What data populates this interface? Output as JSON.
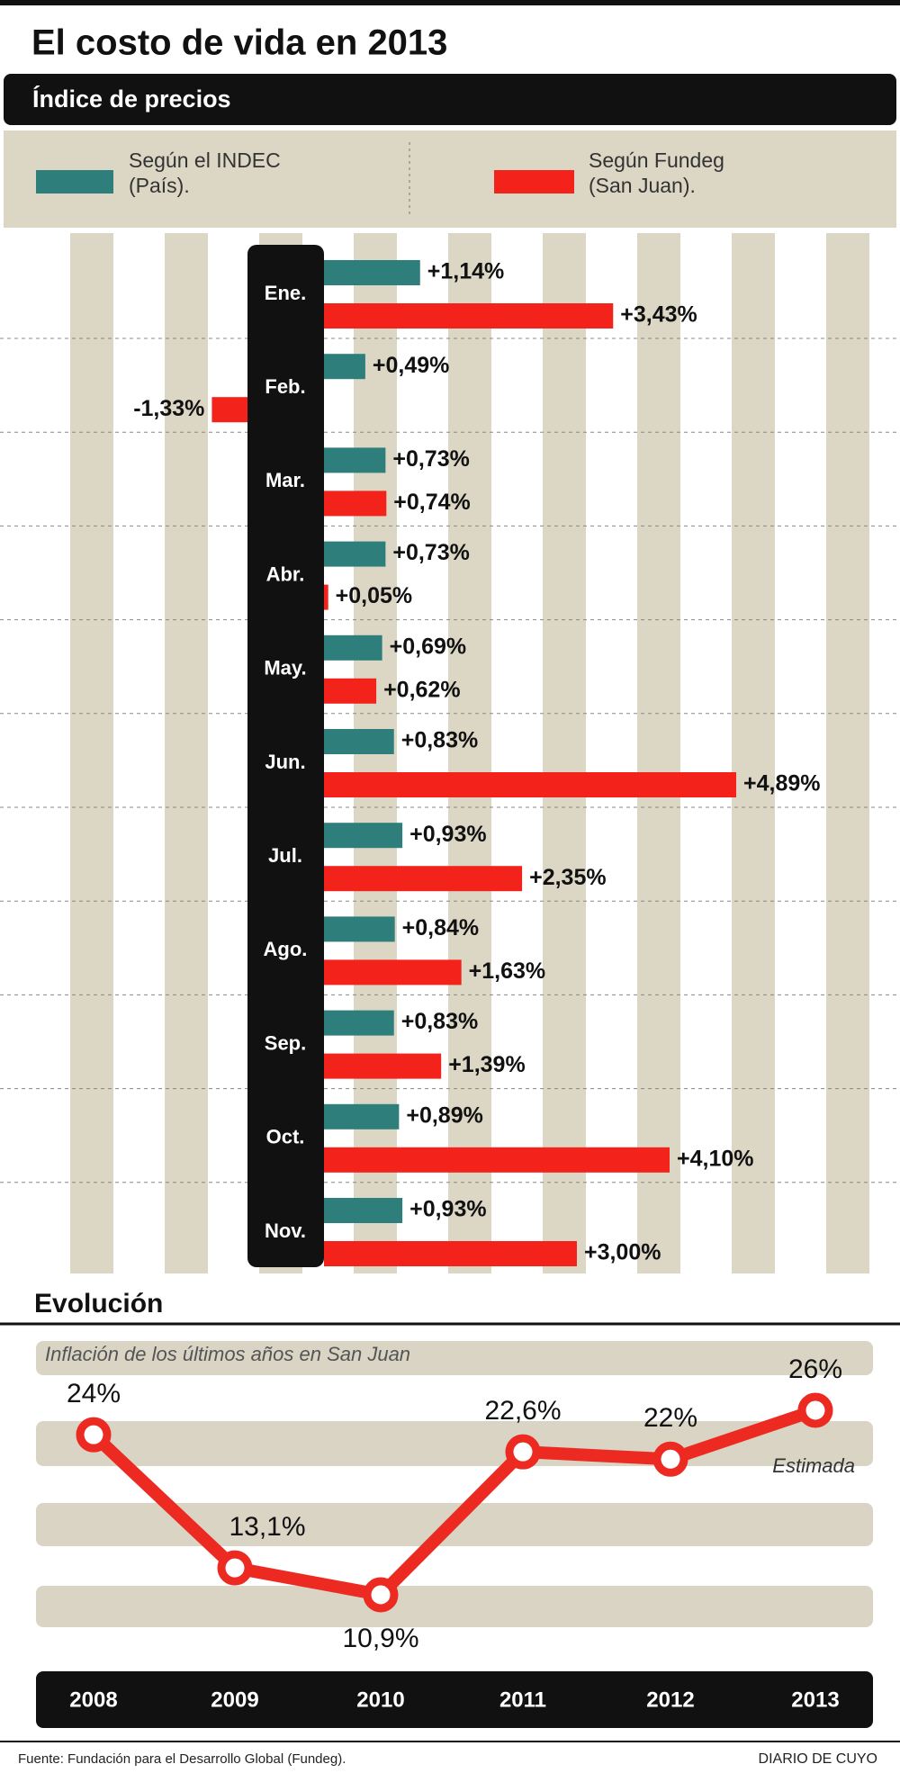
{
  "title": "El costo de vida en 2013",
  "source": "Fuente: Fundación para el Desarrollo Global (Fundeg).",
  "credit": "DIARIO DE CUYO",
  "chart_data": [
    {
      "type": "bar",
      "orientation": "horizontal",
      "subtitle": "Índice de precios",
      "categories": [
        "Ene.",
        "Feb.",
        "Mar.",
        "Abr.",
        "May.",
        "Jun.",
        "Jul.",
        "Ago.",
        "Sep.",
        "Oct.",
        "Nov."
      ],
      "series": [
        {
          "name": "Según el INDEC (País).",
          "color": "#2e7f7c",
          "values": [
            1.14,
            0.49,
            0.73,
            0.73,
            0.69,
            0.83,
            0.93,
            0.84,
            0.83,
            0.89,
            0.93
          ],
          "value_labels": [
            "+1,14%",
            "+0,49%",
            "+0,73%",
            "+0,73%",
            "+0,69%",
            "+0,83%",
            "+0,93%",
            "+0,84%",
            "+0,83%",
            "+0,89%",
            "+0,93%"
          ]
        },
        {
          "name": "Según Fundeg (San Juan).",
          "color": "#f3231b",
          "values": [
            3.43,
            -1.33,
            0.74,
            0.05,
            0.62,
            4.89,
            2.35,
            1.63,
            1.39,
            4.1,
            3.0
          ],
          "value_labels": [
            "+3,43%",
            "-1,33%",
            "+0,74%",
            "+0,05%",
            "+0,62%",
            "+4,89%",
            "+2,35%",
            "+1,63%",
            "+1,39%",
            "+4,10%",
            "+3,00%"
          ]
        }
      ]
    },
    {
      "type": "line",
      "title": "Evolución",
      "subtitle": "Inflación de los últimos años en San Juan",
      "categories": [
        "2008",
        "2009",
        "2010",
        "2011",
        "2012",
        "2013"
      ],
      "values": [
        24,
        13.1,
        10.9,
        22.6,
        22,
        26
      ],
      "value_labels": [
        "24%",
        "13,1%",
        "10,9%",
        "22,6%",
        "22%",
        "26%"
      ],
      "color": "#ec2a21",
      "annotation": "Estimada"
    }
  ]
}
